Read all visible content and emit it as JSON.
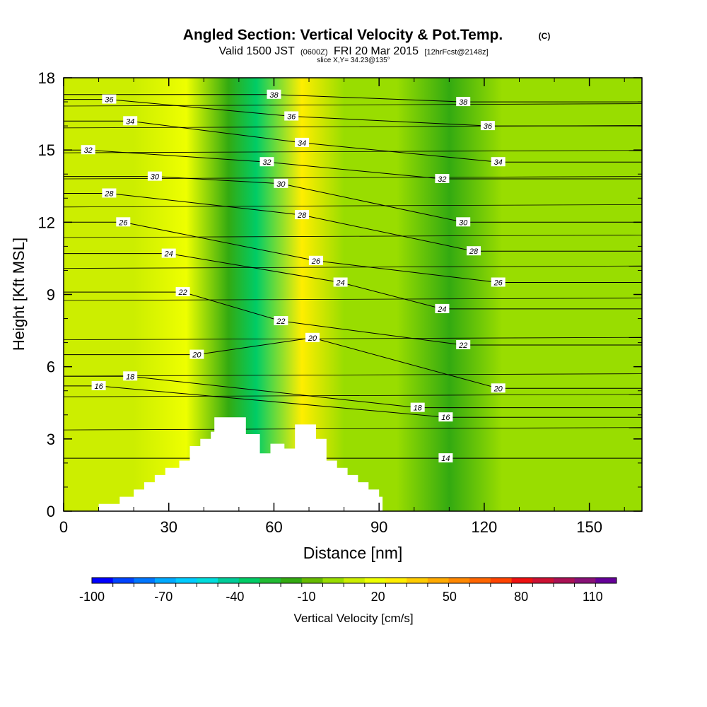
{
  "chart_data": {
    "type": "contour",
    "title": "Angled Section: Vertical Velocity & Pot.Temp.",
    "title_unit": "(C)",
    "subtitle_valid": "Valid 1500 JST",
    "subtitle_utc": "(0600Z)",
    "subtitle_date": "FRI 20 Mar 2015",
    "subtitle_fcst": "[12hrFcst@2148z]",
    "slice_label": "slice X,Y= 34.23@135°",
    "xlabel": "Distance [nm]",
    "ylabel": "Height [Kft MSL]",
    "xlim": [
      0,
      165
    ],
    "ylim": [
      0,
      18
    ],
    "x_ticks": [
      "0",
      "30",
      "60",
      "90",
      "120",
      "150"
    ],
    "y_ticks": [
      "0",
      "3",
      "6",
      "9",
      "12",
      "15",
      "18"
    ],
    "colorbar": {
      "label": "Vertical Velocity [cm/s]",
      "tick_labels": [
        "-100",
        "-70",
        "-40",
        "-10",
        "20",
        "50",
        "80",
        "110"
      ],
      "range": [
        -100,
        120
      ],
      "colors": [
        "#0000ff",
        "#0044ff",
        "#0077ff",
        "#00aaff",
        "#00ccff",
        "#00dddd",
        "#00cc99",
        "#00cc66",
        "#22bb33",
        "#33aa11",
        "#66bb00",
        "#99dd00",
        "#ccee00",
        "#eeff00",
        "#ffee00",
        "#ffcc00",
        "#ffaa00",
        "#ff8800",
        "#ff6600",
        "#ff4400",
        "#ee1111",
        "#cc1133",
        "#aa1155",
        "#881177",
        "#660099"
      ]
    },
    "vertical_velocity_field": {
      "x_centers": [
        5,
        20,
        35,
        47,
        55,
        68,
        80,
        95,
        110,
        125,
        140,
        155
      ],
      "bands": [
        {
          "x": 5,
          "value": 10
        },
        {
          "x": 20,
          "value": 10
        },
        {
          "x": 35,
          "value": 15
        },
        {
          "x": 47,
          "value": -20
        },
        {
          "x": 55,
          "value": -30
        },
        {
          "x": 68,
          "value": 25
        },
        {
          "x": 80,
          "value": 0
        },
        {
          "x": 95,
          "value": 5
        },
        {
          "x": 110,
          "value": -15
        },
        {
          "x": 125,
          "value": 0
        },
        {
          "x": 140,
          "value": 5
        },
        {
          "x": 155,
          "value": 0
        }
      ]
    },
    "potential_temperature_contours": [
      {
        "value": 14,
        "label_x": 109,
        "label_y": 2.2
      },
      {
        "value": 16,
        "label_x": 10,
        "label_y": 5.2
      },
      {
        "value": 16,
        "label_x": 109,
        "label_y": 3.9
      },
      {
        "value": 18,
        "label_x": 19,
        "label_y": 5.6
      },
      {
        "value": 18,
        "label_x": 101,
        "label_y": 4.3
      },
      {
        "value": 20,
        "label_x": 38,
        "label_y": 6.5
      },
      {
        "value": 20,
        "label_x": 71,
        "label_y": 7.2
      },
      {
        "value": 20,
        "label_x": 124,
        "label_y": 5.1
      },
      {
        "value": 22,
        "label_x": 34,
        "label_y": 9.1
      },
      {
        "value": 22,
        "label_x": 62,
        "label_y": 7.9
      },
      {
        "value": 22,
        "label_x": 114,
        "label_y": 6.9
      },
      {
        "value": 24,
        "label_x": 30,
        "label_y": 10.7
      },
      {
        "value": 24,
        "label_x": 79,
        "label_y": 9.5
      },
      {
        "value": 24,
        "label_x": 108,
        "label_y": 8.4
      },
      {
        "value": 26,
        "label_x": 17,
        "label_y": 12.0
      },
      {
        "value": 26,
        "label_x": 72,
        "label_y": 10.4
      },
      {
        "value": 26,
        "label_x": 124,
        "label_y": 9.5
      },
      {
        "value": 28,
        "label_x": 13,
        "label_y": 13.2
      },
      {
        "value": 28,
        "label_x": 68,
        "label_y": 12.3
      },
      {
        "value": 28,
        "label_x": 117,
        "label_y": 10.8
      },
      {
        "value": 30,
        "label_x": 26,
        "label_y": 13.9
      },
      {
        "value": 30,
        "label_x": 62,
        "label_y": 13.6
      },
      {
        "value": 30,
        "label_x": 114,
        "label_y": 12.0
      },
      {
        "value": 32,
        "label_x": 7,
        "label_y": 15.0
      },
      {
        "value": 32,
        "label_x": 58,
        "label_y": 14.5
      },
      {
        "value": 32,
        "label_x": 108,
        "label_y": 13.8
      },
      {
        "value": 34,
        "label_x": 19,
        "label_y": 16.2
      },
      {
        "value": 34,
        "label_x": 68,
        "label_y": 15.3
      },
      {
        "value": 34,
        "label_x": 124,
        "label_y": 14.5
      },
      {
        "value": 36,
        "label_x": 13,
        "label_y": 17.1
      },
      {
        "value": 36,
        "label_x": 65,
        "label_y": 16.4
      },
      {
        "value": 36,
        "label_x": 121,
        "label_y": 16.0
      },
      {
        "value": 38,
        "label_x": 60,
        "label_y": 17.3
      },
      {
        "value": 38,
        "label_x": 114,
        "label_y": 17.0
      }
    ],
    "terrain": [
      [
        0,
        0
      ],
      [
        10,
        0
      ],
      [
        10,
        0.3
      ],
      [
        16,
        0.3
      ],
      [
        16,
        0.6
      ],
      [
        20,
        0.6
      ],
      [
        20,
        0.9
      ],
      [
        23,
        0.9
      ],
      [
        23,
        1.2
      ],
      [
        26,
        1.2
      ],
      [
        26,
        1.5
      ],
      [
        29,
        1.5
      ],
      [
        29,
        1.8
      ],
      [
        33,
        1.8
      ],
      [
        33,
        2.1
      ],
      [
        36,
        2.1
      ],
      [
        36,
        2.7
      ],
      [
        39,
        2.7
      ],
      [
        39,
        3.0
      ],
      [
        42,
        3.0
      ],
      [
        42,
        3.3
      ],
      [
        43,
        3.3
      ],
      [
        43,
        3.9
      ],
      [
        52,
        3.9
      ],
      [
        52,
        3.2
      ],
      [
        56,
        3.2
      ],
      [
        56,
        2.4
      ],
      [
        59,
        2.4
      ],
      [
        59,
        2.8
      ],
      [
        63,
        2.8
      ],
      [
        63,
        2.6
      ],
      [
        66,
        2.6
      ],
      [
        66,
        3.6
      ],
      [
        72,
        3.6
      ],
      [
        72,
        3.0
      ],
      [
        75,
        3.0
      ],
      [
        75,
        2.1
      ],
      [
        78,
        2.1
      ],
      [
        78,
        1.8
      ],
      [
        81,
        1.8
      ],
      [
        81,
        1.5
      ],
      [
        84,
        1.5
      ],
      [
        84,
        1.2
      ],
      [
        87,
        1.2
      ],
      [
        87,
        0.9
      ],
      [
        90,
        0.9
      ],
      [
        90,
        0.6
      ],
      [
        91,
        0.6
      ],
      [
        91,
        0
      ],
      [
        165,
        0
      ]
    ]
  }
}
